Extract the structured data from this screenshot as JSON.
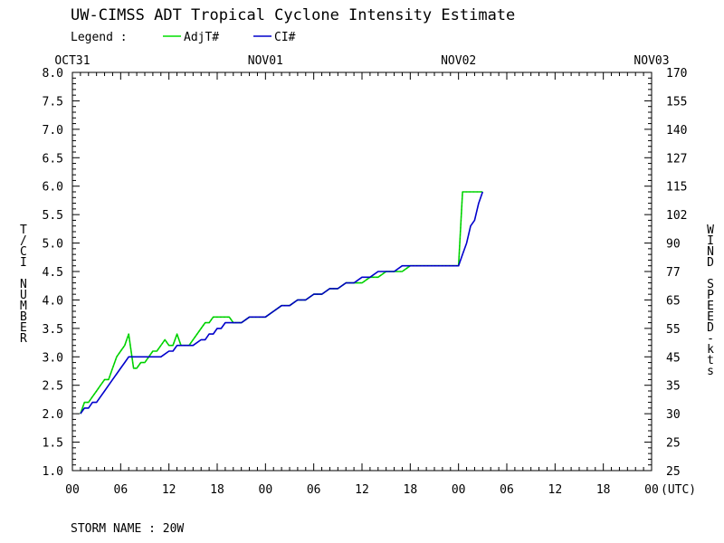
{
  "chart_data": {
    "type": "line",
    "title": "UW-CIMSS ADT Tropical Cyclone Intensity Estimate",
    "legend_label": "Legend :",
    "legend_placement": "top-left",
    "storm_name": "STORM NAME : 20W",
    "ylabel": "T/CI NUMBER",
    "y2label": "WIND SPEED-kts",
    "x_unit_label": "(UTC)",
    "ylim": [
      1.0,
      8.0
    ],
    "xlim": [
      0,
      72
    ],
    "x_ticks": [
      {
        "x": 0,
        "label": "00"
      },
      {
        "x": 6,
        "label": "06"
      },
      {
        "x": 12,
        "label": "12"
      },
      {
        "x": 18,
        "label": "18"
      },
      {
        "x": 24,
        "label": "00"
      },
      {
        "x": 30,
        "label": "06"
      },
      {
        "x": 36,
        "label": "12"
      },
      {
        "x": 42,
        "label": "18"
      },
      {
        "x": 48,
        "label": "00"
      },
      {
        "x": 54,
        "label": "06"
      },
      {
        "x": 60,
        "label": "12"
      },
      {
        "x": 66,
        "label": "18"
      },
      {
        "x": 72,
        "label": "00"
      }
    ],
    "date_labels": [
      {
        "x": 0,
        "label": "OCT31"
      },
      {
        "x": 24,
        "label": "NOV01"
      },
      {
        "x": 48,
        "label": "NOV02"
      },
      {
        "x": 72,
        "label": "NOV03"
      }
    ],
    "y_ticks": [
      "1.0",
      "1.5",
      "2.0",
      "2.5",
      "3.0",
      "3.5",
      "4.0",
      "4.5",
      "5.0",
      "5.5",
      "6.0",
      "6.5",
      "7.0",
      "7.5",
      "8.0"
    ],
    "wind_ticks": [
      "25",
      "25",
      "30",
      "35",
      "45",
      "55",
      "65",
      "77",
      "90",
      "102",
      "115",
      "127",
      "140",
      "155",
      "170"
    ],
    "series": [
      {
        "name": "AdjT#",
        "color": "#00dd00",
        "x": [
          1,
          1.5,
          2,
          2.5,
          3,
          3.5,
          4,
          4.5,
          5,
          5.5,
          6,
          6.5,
          7,
          7.2,
          7.6,
          8,
          8.5,
          9,
          9.5,
          10,
          10.5,
          11,
          11.5,
          12,
          12.5,
          13,
          13.5,
          14,
          14.5,
          15,
          15.5,
          16,
          16.5,
          17,
          17.5,
          18,
          18.5,
          19,
          19.5,
          20,
          21,
          22,
          23,
          24,
          25,
          26,
          27,
          28,
          29,
          30,
          31,
          32,
          33,
          34,
          35,
          36,
          37,
          38,
          39,
          40,
          41,
          42,
          43,
          44,
          45,
          46,
          47,
          47.5,
          48,
          48.5,
          49,
          50,
          51
        ],
        "values": [
          2.0,
          2.2,
          2.2,
          2.3,
          2.4,
          2.5,
          2.6,
          2.6,
          2.8,
          3.0,
          3.1,
          3.2,
          3.4,
          3.2,
          2.8,
          2.8,
          2.9,
          2.9,
          3.0,
          3.1,
          3.1,
          3.2,
          3.3,
          3.2,
          3.2,
          3.4,
          3.2,
          3.2,
          3.2,
          3.3,
          3.4,
          3.5,
          3.6,
          3.6,
          3.7,
          3.7,
          3.7,
          3.7,
          3.7,
          3.6,
          3.6,
          3.7,
          3.7,
          3.7,
          3.8,
          3.9,
          3.9,
          4.0,
          4.0,
          4.1,
          4.1,
          4.2,
          4.2,
          4.3,
          4.3,
          4.3,
          4.4,
          4.4,
          4.5,
          4.5,
          4.5,
          4.6,
          4.6,
          4.6,
          4.6,
          4.6,
          4.6,
          4.6,
          4.6,
          5.9,
          5.9,
          5.9,
          5.9
        ]
      },
      {
        "name": "CI#",
        "color": "#0000cc",
        "x": [
          1,
          1.5,
          2,
          2.5,
          3,
          3.5,
          4,
          4.5,
          5,
          5.5,
          6,
          6.5,
          7,
          7.5,
          8,
          9,
          10,
          11,
          12,
          12.5,
          13,
          14,
          15,
          16,
          16.5,
          17,
          17.5,
          18,
          18.5,
          19,
          19.5,
          20,
          21,
          22,
          23,
          24,
          25,
          26,
          27,
          28,
          29,
          30,
          31,
          32,
          33,
          34,
          35,
          36,
          37,
          38,
          39,
          40,
          41,
          42,
          43,
          44,
          45,
          46,
          47,
          47.5,
          48,
          48.5,
          49,
          49.5,
          50,
          50.5,
          51
        ],
        "values": [
          2.0,
          2.1,
          2.1,
          2.2,
          2.2,
          2.3,
          2.4,
          2.5,
          2.6,
          2.7,
          2.8,
          2.9,
          3.0,
          3.0,
          3.0,
          3.0,
          3.0,
          3.0,
          3.1,
          3.1,
          3.2,
          3.2,
          3.2,
          3.3,
          3.3,
          3.4,
          3.4,
          3.5,
          3.5,
          3.6,
          3.6,
          3.6,
          3.6,
          3.7,
          3.7,
          3.7,
          3.8,
          3.9,
          3.9,
          4.0,
          4.0,
          4.1,
          4.1,
          4.2,
          4.2,
          4.3,
          4.3,
          4.4,
          4.4,
          4.5,
          4.5,
          4.5,
          4.6,
          4.6,
          4.6,
          4.6,
          4.6,
          4.6,
          4.6,
          4.6,
          4.6,
          4.8,
          5.0,
          5.3,
          5.4,
          5.7,
          5.9
        ]
      }
    ]
  }
}
